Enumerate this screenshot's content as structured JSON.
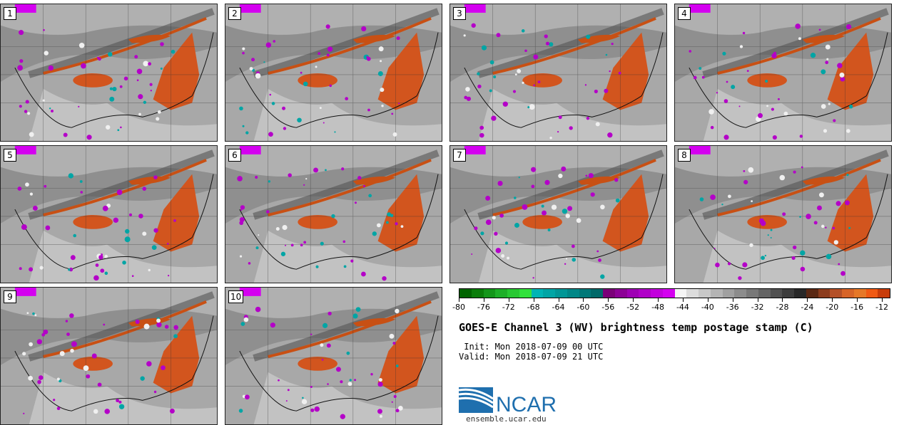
{
  "panels": [
    {
      "label": "1"
    },
    {
      "label": "2"
    },
    {
      "label": "3"
    },
    {
      "label": "4"
    },
    {
      "label": "5"
    },
    {
      "label": "6"
    },
    {
      "label": "7"
    },
    {
      "label": "8"
    },
    {
      "label": "9"
    },
    {
      "label": "10"
    }
  ],
  "colorbar": {
    "ticks": [
      "-80",
      "-76",
      "-72",
      "-68",
      "-64",
      "-60",
      "-56",
      "-52",
      "-48",
      "-44",
      "-40",
      "-36",
      "-32",
      "-28",
      "-24",
      "-20",
      "-16",
      "-12"
    ],
    "colors": [
      "#006400",
      "#0a7d0a",
      "#14961a",
      "#1eaf28",
      "#28c832",
      "#32e13c",
      "#00b4b4",
      "#00a5a5",
      "#009696",
      "#008787",
      "#007878",
      "#006969",
      "#7a0078",
      "#8c0096",
      "#9e00b4",
      "#b000c8",
      "#c200dc",
      "#d400f0",
      "#f5f5f5",
      "#dcdcdc",
      "#c8c8c8",
      "#b4b4b4",
      "#a0a0a0",
      "#8c8c8c",
      "#787878",
      "#646464",
      "#505050",
      "#3c3c3c",
      "#282828",
      "#5a2814",
      "#8c3c1e",
      "#b45028",
      "#d76428",
      "#e67828",
      "#f05a14",
      "#c83c0a"
    ]
  },
  "title": "GOES-E Channel 3 (WV) brightness temp postage stamp (C)",
  "init": " Init: Mon 2018-07-09 00 UTC",
  "valid": "Valid: Mon 2018-07-09 21 UTC",
  "logo": {
    "text": "NCAR",
    "url": "ensemble.ucar.edu",
    "brand_color": "#1f6fae"
  }
}
